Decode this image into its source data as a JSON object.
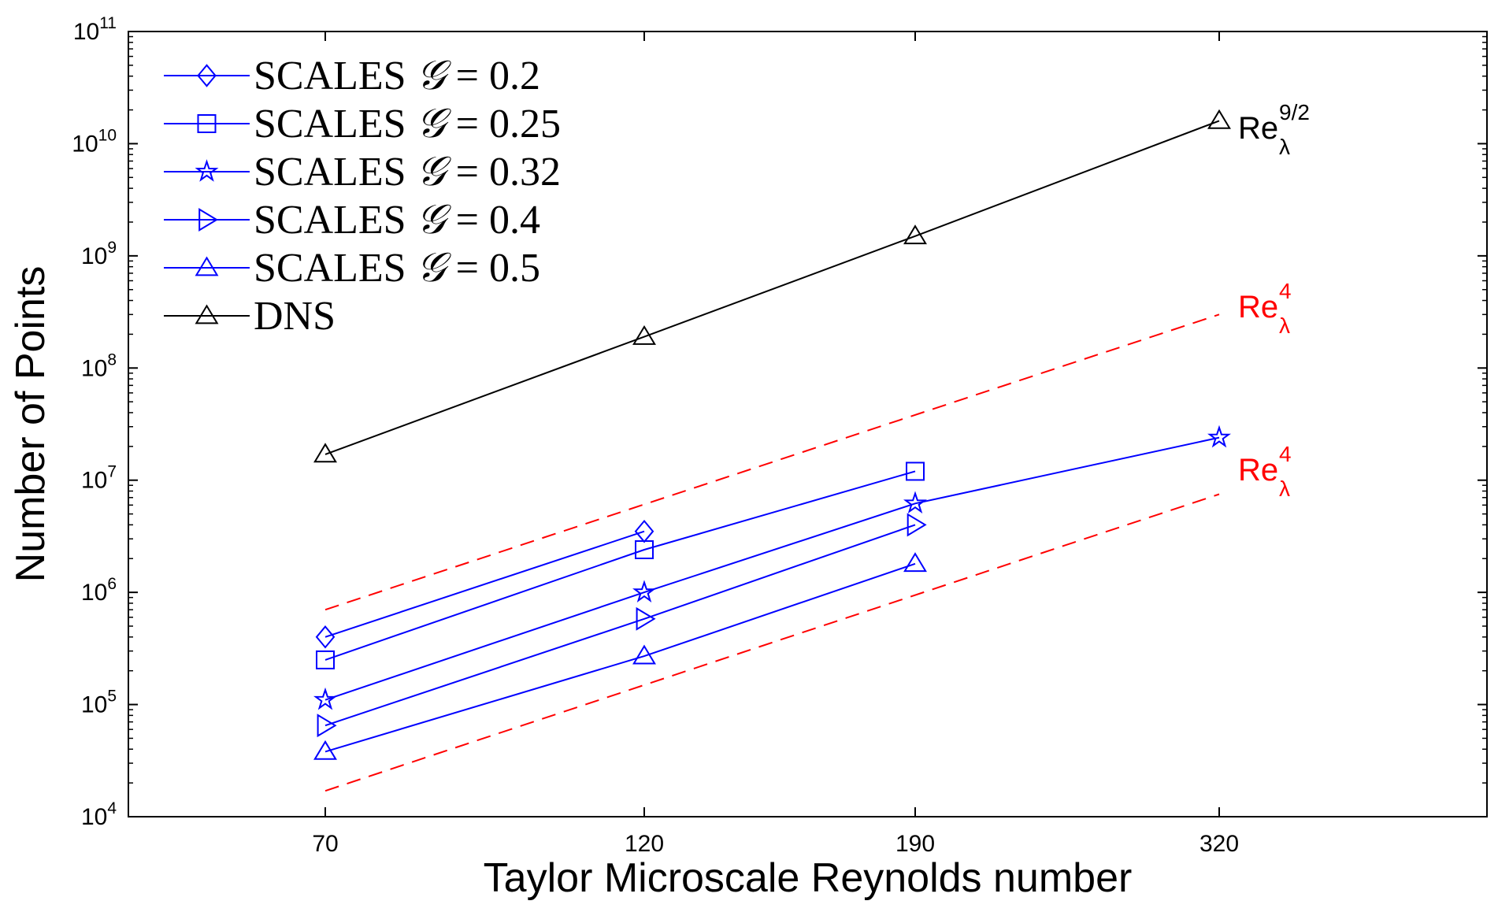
{
  "chart_data": {
    "type": "line",
    "y_scale": "log",
    "x_scale": "categorical",
    "title": "",
    "xlabel": "Taylor Microscale Reynolds number",
    "ylabel": "Number of Points",
    "categories": [
      "70",
      "120",
      "190",
      "320"
    ],
    "x_values": [
      70,
      120,
      190,
      320
    ],
    "ylim": [
      10000,
      100000000000
    ],
    "y_ticks": [
      {
        "base": "10",
        "exp": "4"
      },
      {
        "base": "10",
        "exp": "5"
      },
      {
        "base": "10",
        "exp": "6"
      },
      {
        "base": "10",
        "exp": "7"
      },
      {
        "base": "10",
        "exp": "8"
      },
      {
        "base": "10",
        "exp": "9"
      },
      {
        "base": "10",
        "exp": "10"
      },
      {
        "base": "10",
        "exp": "11"
      }
    ],
    "grid": false,
    "legend_position": "top-left",
    "series": [
      {
        "name": "SCALES 𝒢 = 0.2",
        "prefix": "SCALES",
        "symbol": "𝒢",
        "eq": "= 0.2",
        "marker": "diamond",
        "color": "#0000ff",
        "values": [
          400000,
          3500000,
          null,
          null
        ]
      },
      {
        "name": "SCALES 𝒢 = 0.25",
        "prefix": "SCALES",
        "symbol": "𝒢",
        "eq": "= 0.25",
        "marker": "square",
        "color": "#0000ff",
        "values": [
          250000,
          2400000,
          12000000,
          null
        ]
      },
      {
        "name": "SCALES 𝒢 = 0.32",
        "prefix": "SCALES",
        "symbol": "𝒢",
        "eq": "= 0.32",
        "marker": "star",
        "color": "#0000ff",
        "values": [
          110000,
          1000000,
          6200000,
          24000000
        ]
      },
      {
        "name": "SCALES 𝒢 = 0.4",
        "prefix": "SCALES",
        "symbol": "𝒢",
        "eq": "= 0.4",
        "marker": "triangle-right",
        "color": "#0000ff",
        "values": [
          65000,
          580000,
          4000000,
          null
        ]
      },
      {
        "name": "SCALES 𝒢 = 0.5",
        "prefix": "SCALES",
        "symbol": "𝒢",
        "eq": "= 0.5",
        "marker": "triangle-up",
        "color": "#0000ff",
        "values": [
          38000,
          270000,
          1800000,
          null
        ]
      },
      {
        "name": "DNS",
        "prefix": "DNS",
        "symbol": "",
        "eq": "",
        "marker": "triangle-up",
        "color": "#000000",
        "values": [
          17000000,
          190000000,
          1500000000,
          16000000000
        ]
      }
    ],
    "reference_lines": [
      {
        "label": "Re",
        "sub": "λ",
        "sup": "4",
        "color": "#ff0000",
        "dashed": true,
        "start": [
          70,
          700000
        ],
        "end": [
          320,
          300000000
        ]
      },
      {
        "label": "Re",
        "sub": "λ",
        "sup": "4",
        "color": "#ff0000",
        "dashed": true,
        "start": [
          70,
          17000
        ],
        "end": [
          320,
          7500000
        ]
      }
    ],
    "annotations": [
      {
        "label": "Re",
        "sub": "λ",
        "sup": "9/2",
        "color": "#000000",
        "anchor": "DNS end"
      },
      {
        "label": "Re",
        "sub": "λ",
        "sup": "4",
        "color": "#ff0000",
        "anchor": "upper dashed end"
      },
      {
        "label": "Re",
        "sub": "λ",
        "sup": "4",
        "color": "#ff0000",
        "anchor": "lower dashed end"
      }
    ]
  }
}
